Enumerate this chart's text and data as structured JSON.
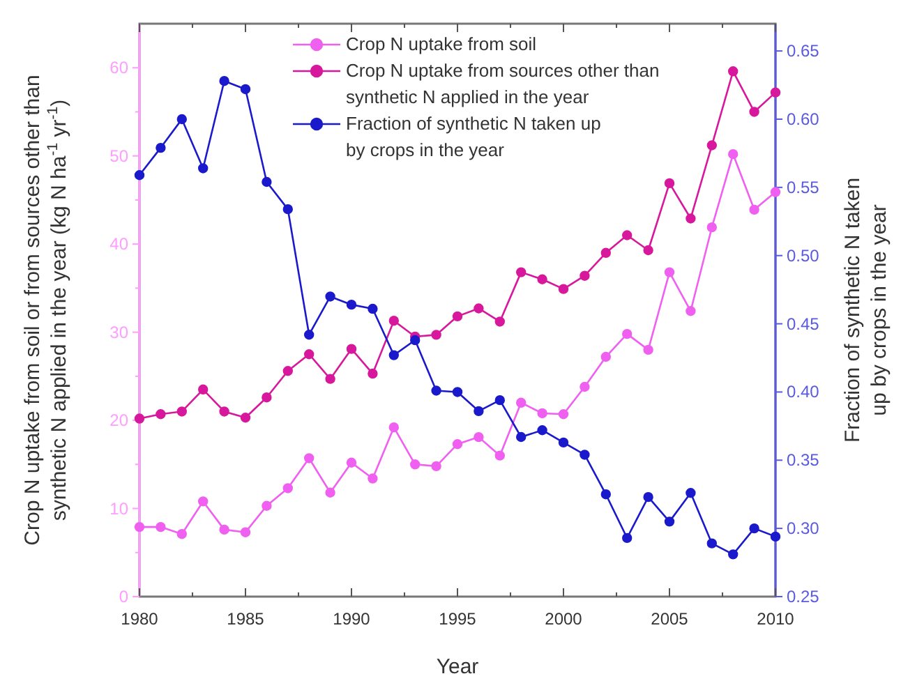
{
  "chart_data": {
    "type": "line",
    "xlabel": "Year",
    "ylabel": "Crop N uptake from soil or from sources other than\nsynthetic N applied in the year (kg N ha$^{-1}$ yr$^{-1}$)",
    "y2label": "Fraction of synthetic N taken\nup by crops in the year",
    "x": [
      1980,
      1981,
      1982,
      1983,
      1984,
      1985,
      1986,
      1987,
      1988,
      1989,
      1990,
      1991,
      1992,
      1993,
      1994,
      1995,
      1996,
      1997,
      1998,
      1999,
      2000,
      2001,
      2002,
      2003,
      2004,
      2005,
      2006,
      2007,
      2008,
      2009,
      2010
    ],
    "series": [
      {
        "name": "Crop N uptake from soil",
        "color": "#f060f0",
        "values": [
          7.9,
          7.9,
          7.1,
          10.8,
          7.6,
          7.3,
          10.3,
          12.3,
          15.7,
          11.8,
          15.2,
          13.4,
          19.2,
          15.0,
          14.8,
          17.3,
          18.1,
          16.0,
          22.0,
          20.8,
          20.7,
          23.8,
          27.2,
          29.8,
          28.0,
          36.8,
          32.4,
          41.9,
          50.2,
          43.9,
          45.9
        ]
      },
      {
        "name": "Crop N uptake from sources other than\nsynthetic N applied in the year",
        "color": "#d8189c",
        "values": [
          20.2,
          20.7,
          21.0,
          23.5,
          21.0,
          20.3,
          22.6,
          25.6,
          27.5,
          24.7,
          28.1,
          25.3,
          31.3,
          29.5,
          29.7,
          31.8,
          32.7,
          31.2,
          36.8,
          36.0,
          34.9,
          36.4,
          39.0,
          41.0,
          39.3,
          46.9,
          42.9,
          51.2,
          59.6,
          55.0,
          57.2
        ]
      },
      {
        "name": "Fraction of synthetic N taken up\nby crops in the year",
        "color": "#1a1acc",
        "axis": "y2",
        "values": [
          0.559,
          0.579,
          0.6,
          0.564,
          0.628,
          0.622,
          0.554,
          0.534,
          0.442,
          0.47,
          0.464,
          0.461,
          0.427,
          0.438,
          0.401,
          0.4,
          0.386,
          0.394,
          0.367,
          0.372,
          0.363,
          0.354,
          0.325,
          0.293,
          0.323,
          0.305,
          0.326,
          0.289,
          0.281,
          0.3,
          0.294
        ]
      }
    ],
    "xlim": [
      1980,
      2010
    ],
    "xticks": [
      1980,
      {
        "value": 1982.5,
        "label": null
      },
      1985,
      {
        "value": 1987.5,
        "label": null
      },
      1990,
      {
        "value": 1992.5,
        "label": null
      },
      1995,
      {
        "value": 1997.5,
        "label": null
      },
      2000,
      {
        "value": 2002.5,
        "label": null
      },
      2005,
      {
        "value": 2007.5,
        "label": null
      },
      2010
    ],
    "ylim": [
      0,
      65
    ],
    "yticks": [
      0,
      {
        "value": 5,
        "label": null
      },
      10,
      {
        "value": 15,
        "label": null
      },
      20,
      {
        "value": 25,
        "label": null
      },
      30,
      {
        "value": 35,
        "label": null
      },
      40,
      {
        "value": 45,
        "label": null
      },
      50,
      {
        "value": 55,
        "label": null
      },
      60
    ],
    "y2lim": [
      0.25,
      0.67
    ],
    "y2ticks": [
      {
        "value": 0.25,
        "label": "0.25"
      },
      {
        "value": 0.3,
        "label": "0.30"
      },
      {
        "value": 0.35,
        "label": "0.35"
      },
      {
        "value": 0.4,
        "label": "0.40"
      },
      {
        "value": 0.45,
        "label": "0.45"
      },
      {
        "value": 0.5,
        "label": "0.50"
      },
      {
        "value": 0.55,
        "label": "0.55"
      },
      {
        "value": 0.6,
        "label": "0.60"
      },
      {
        "value": 0.65,
        "label": "0.65"
      }
    ],
    "marker": "circle",
    "line_style": "solid",
    "legend": "top",
    "grid": false
  }
}
